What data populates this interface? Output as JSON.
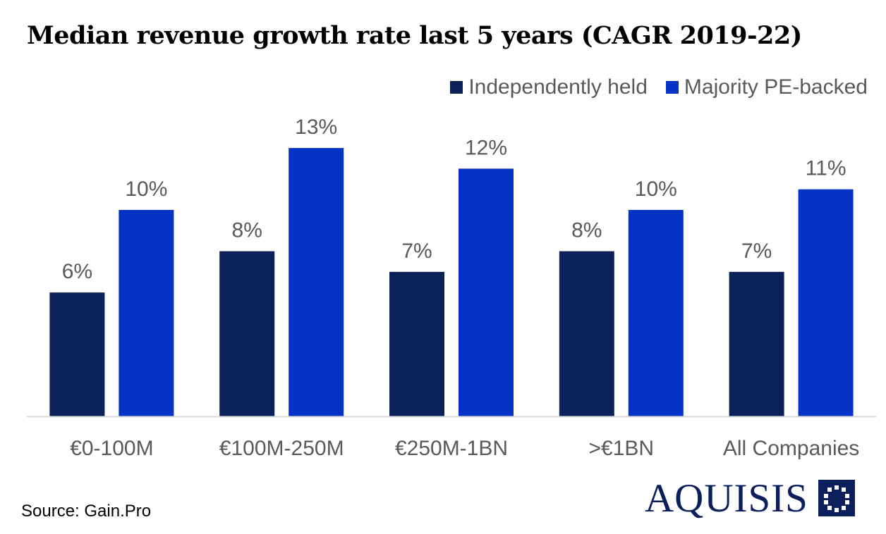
{
  "chart_data": {
    "type": "bar",
    "title": "Median revenue growth rate last 5 years (CAGR 2019-22)",
    "categories": [
      "€0-100M",
      "€100M-250M",
      "€250M-1BN",
      ">€1BN",
      "All Companies"
    ],
    "series": [
      {
        "name": "Independently held",
        "color": "#0c2158",
        "values": [
          6,
          8,
          7,
          8,
          7
        ],
        "labels": [
          "6%",
          "8%",
          "7%",
          "8%",
          "7%"
        ]
      },
      {
        "name": "Majority PE-backed",
        "color": "#0433c6",
        "values": [
          10,
          13,
          12,
          10,
          11
        ],
        "labels": [
          "10%",
          "13%",
          "12%",
          "10%",
          "11%"
        ]
      }
    ],
    "xlabel": "",
    "ylabel": "",
    "ylim": [
      0,
      13.5
    ],
    "grid": false,
    "legend_position": "top-right"
  },
  "footer": {
    "source": "Source: Gain.Pro"
  },
  "brand": {
    "name": "AQUISIS",
    "color": "#0a1f5c"
  }
}
